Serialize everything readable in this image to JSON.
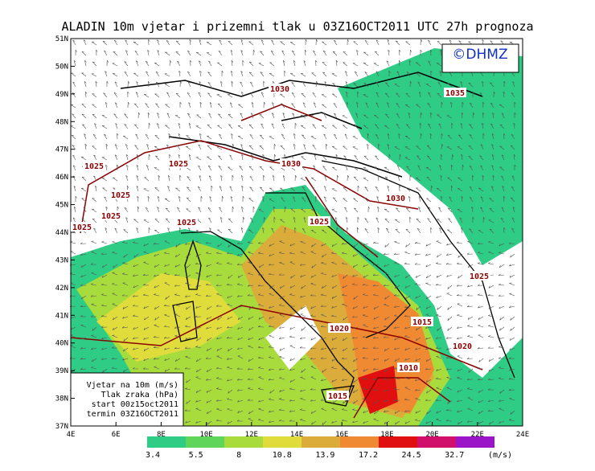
{
  "header": {
    "title": "ALADIN 10m vjetar i prizemni tlak u 03Z16OCT2011 UTC 27h prognoza",
    "logo": "©DHMZ"
  },
  "map": {
    "lat_labels": [
      "51N",
      "50N",
      "49N",
      "48N",
      "47N",
      "46N",
      "45N",
      "44N",
      "43N",
      "42N",
      "41N",
      "40N",
      "39N",
      "38N",
      "37N"
    ],
    "lon_labels": [
      "4E",
      "6E",
      "8E",
      "10E",
      "12E",
      "14E",
      "16E",
      "18E",
      "20E",
      "22E",
      "24E"
    ],
    "isobars": [
      "1030",
      "1035",
      "1025",
      "1025",
      "1030",
      "1025",
      "1025",
      "1025",
      "1025",
      "1030",
      "1025",
      "1025",
      "1020",
      "1015",
      "1020",
      "1010",
      "1015"
    ]
  },
  "info_box": {
    "lines": [
      "Vjetar na 10m (m/s)",
      "Tlak zraka (hPa)",
      "start 00z15oct2011",
      "termin 03Z16OCT2011"
    ]
  },
  "colorbar": {
    "labels": [
      "3.4",
      "5.5",
      "8",
      "10.8",
      "13.9",
      "17.2",
      "24.5",
      "32.7"
    ],
    "unit": "(m/s)",
    "colors": [
      "#2ecc85",
      "#5fd65a",
      "#a8dc3c",
      "#e0dc3c",
      "#dcac3a",
      "#f08a32",
      "#e01010",
      "#d0106a",
      "#9a14c8"
    ]
  }
}
